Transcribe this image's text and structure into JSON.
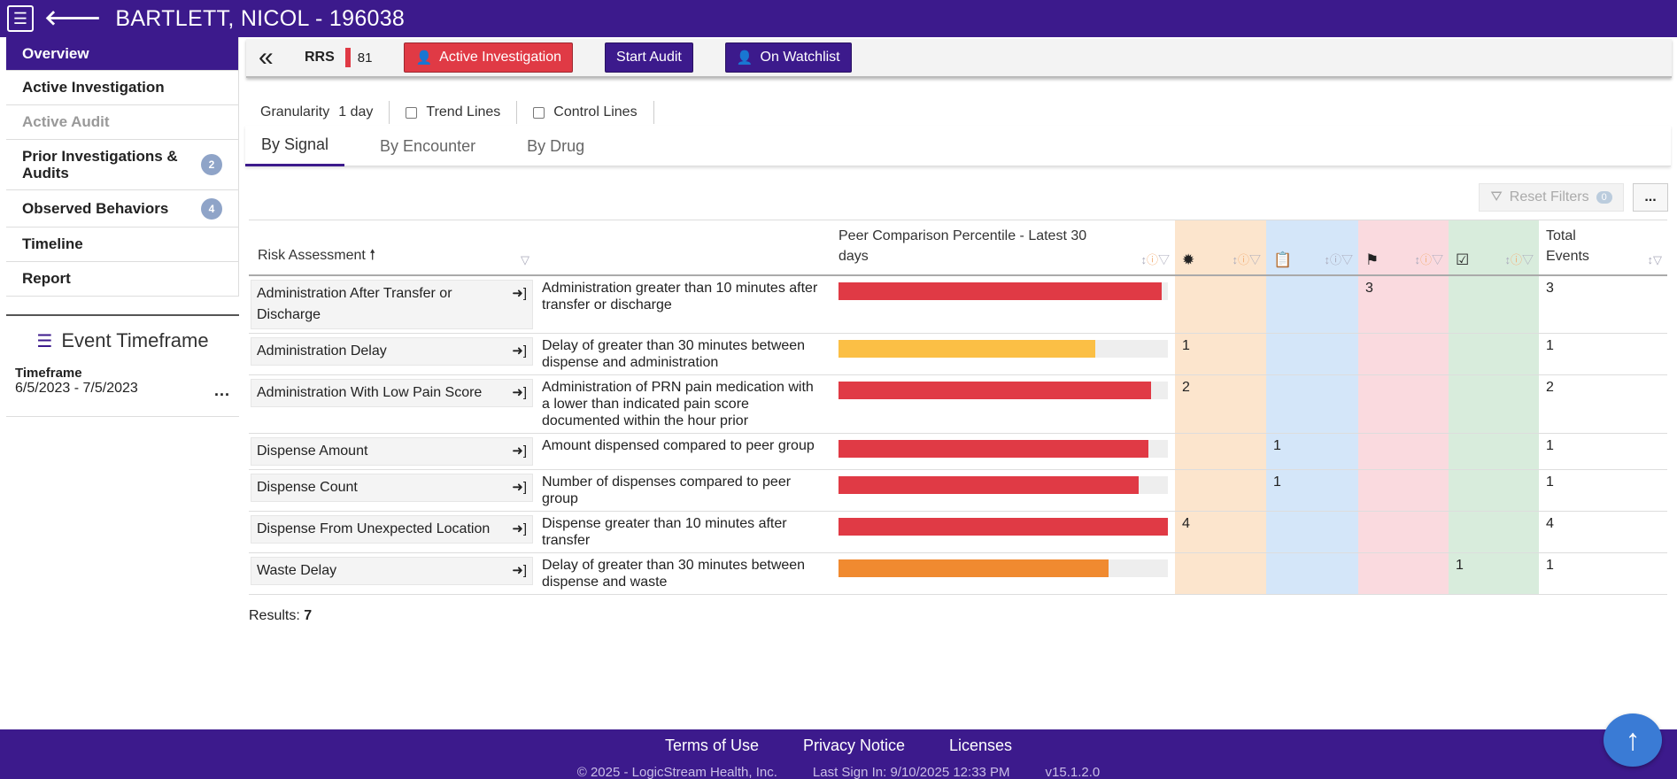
{
  "header": {
    "patient": "BARTLETT, NICOL - 196038"
  },
  "sidebar": {
    "items": [
      {
        "label": "Overview"
      },
      {
        "label": "Active Investigation"
      },
      {
        "label": "Active Audit"
      },
      {
        "label": "Prior Investigations & Audits",
        "badge": "2"
      },
      {
        "label": "Observed Behaviors",
        "badge": "4"
      },
      {
        "label": "Timeline"
      },
      {
        "label": "Report"
      }
    ],
    "event_timeframe": {
      "title": "Event Timeframe",
      "label": "Timeframe",
      "value": "6/5/2023 - 7/5/2023",
      "more": "..."
    }
  },
  "actionbar": {
    "rrs_label": "RRS",
    "rrs_value": "81",
    "active_investigation": "Active Investigation",
    "start_audit": "Start Audit",
    "on_watchlist": "On Watchlist"
  },
  "options": {
    "granularity_label": "Granularity",
    "granularity_value": "1 day",
    "trend_lines": "Trend Lines",
    "control_lines": "Control Lines"
  },
  "tabs": [
    "By Signal",
    "By Encounter",
    "By Drug"
  ],
  "filters": {
    "reset_label": "Reset Filters",
    "reset_count": "0",
    "more": "..."
  },
  "table": {
    "headers": {
      "risk": "Risk Assessment",
      "peer": "Peer Comparison Percentile - Latest 30 days",
      "total": "Total Events"
    },
    "rows": [
      {
        "risk": "Administration After Transfer or Discharge",
        "desc": "Administration greater than 10 minutes after transfer or discharge",
        "percentile": 0.98,
        "color": "#e03a45",
        "c1": "",
        "c2": "",
        "c3": "3",
        "c4": "",
        "total": "3"
      },
      {
        "risk": "Administration Delay",
        "desc": "Delay of greater than 30 minutes between dispense and administration",
        "percentile": 0.78,
        "color": "#fbbf45",
        "c1": "1",
        "c2": "",
        "c3": "",
        "c4": "",
        "total": "1"
      },
      {
        "risk": "Administration With Low Pain Score",
        "desc": "Administration of PRN pain medication with a lower than indicated pain score documented within the hour prior",
        "percentile": 0.95,
        "color": "#e03a45",
        "c1": "2",
        "c2": "",
        "c3": "",
        "c4": "",
        "total": "2"
      },
      {
        "risk": "Dispense Amount",
        "desc": "Amount dispensed compared to peer group",
        "percentile": 0.94,
        "color": "#e03a45",
        "c1": "",
        "c2": "1",
        "c3": "",
        "c4": "",
        "total": "1"
      },
      {
        "risk": "Dispense Count",
        "desc": "Number of dispenses compared to peer group",
        "percentile": 0.91,
        "color": "#e03a45",
        "c1": "",
        "c2": "1",
        "c3": "",
        "c4": "",
        "total": "1"
      },
      {
        "risk": "Dispense From Unexpected Location",
        "desc": "Dispense greater than 10 minutes after transfer",
        "percentile": 1.0,
        "color": "#e03a45",
        "c1": "4",
        "c2": "",
        "c3": "",
        "c4": "",
        "total": "4"
      },
      {
        "risk": "Waste Delay",
        "desc": "Delay of greater than 30 minutes between dispense and waste",
        "percentile": 0.82,
        "color": "#f08a30",
        "c1": "",
        "c2": "",
        "c3": "",
        "c4": "1",
        "total": "1"
      }
    ],
    "results_label": "Results:",
    "results_count": "7"
  },
  "footer": {
    "links": [
      "Terms of Use",
      "Privacy Notice",
      "Licenses"
    ],
    "copyright": "© 2025 - LogicStream Health, Inc.",
    "last_sign_in": "Last Sign In: 9/10/2025 12:33 PM",
    "version": "v15.1.2.0"
  }
}
